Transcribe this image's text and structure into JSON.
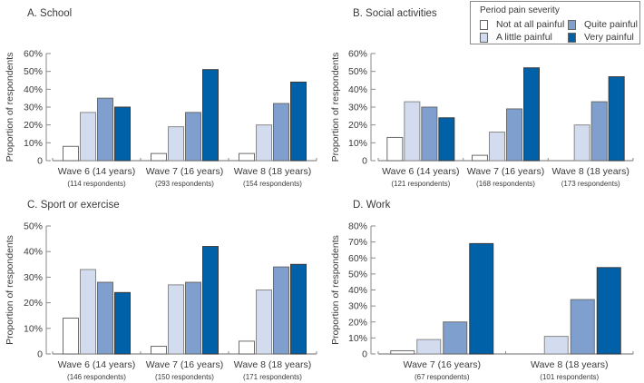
{
  "legend": {
    "title": "Period pain severity",
    "items": [
      {
        "label": "Not at all painful",
        "color": "#ffffff"
      },
      {
        "label": "A little painful",
        "color": "#d3dcee"
      },
      {
        "label": "Quite painful",
        "color": "#7f9fcf"
      },
      {
        "label": "Very painful",
        "color": "#0061a8"
      }
    ]
  },
  "chart_data": [
    {
      "type": "bar",
      "title": "A. School",
      "ylabel": "Proportion of respondents",
      "ylim": [
        0,
        60
      ],
      "yticks": [
        "0",
        "10%",
        "20%",
        "30%",
        "40%",
        "50%",
        "60%"
      ],
      "categories": [
        "Wave 6 (14 years)",
        "Wave 7 (16 years)",
        "Wave 8 (18 years)"
      ],
      "sublabels": [
        "(114 respondents)",
        "(293 respondents)",
        "(154 respondents)"
      ],
      "series": [
        {
          "name": "Not at all painful",
          "values": [
            8,
            4,
            4
          ]
        },
        {
          "name": "A little painful",
          "values": [
            27,
            19,
            20
          ]
        },
        {
          "name": "Quite painful",
          "values": [
            35,
            27,
            32
          ]
        },
        {
          "name": "Very painful",
          "values": [
            30,
            51,
            44
          ]
        }
      ]
    },
    {
      "type": "bar",
      "title": "B. Social activities",
      "ylabel": "Proportion of respondents",
      "ylim": [
        0,
        60
      ],
      "yticks": [
        "0",
        "10%",
        "20%",
        "30%",
        "40%",
        "50%",
        "60%"
      ],
      "categories": [
        "Wave 6 (14 years)",
        "Wave 7 (16 years)",
        "Wave 8 (18 years)"
      ],
      "sublabels": [
        "(121 respondents)",
        "(168 respondents)",
        "(173 respondents)"
      ],
      "series": [
        {
          "name": "Not at all painful",
          "values": [
            13,
            3,
            0
          ]
        },
        {
          "name": "A little painful",
          "values": [
            33,
            16,
            20
          ]
        },
        {
          "name": "Quite painful",
          "values": [
            30,
            29,
            33
          ]
        },
        {
          "name": "Very painful",
          "values": [
            24,
            52,
            47
          ]
        }
      ]
    },
    {
      "type": "bar",
      "title": "C. Sport or exercise",
      "ylabel": "Proportion of respondents",
      "ylim": [
        0,
        50
      ],
      "yticks": [
        "0",
        "10%",
        "20%",
        "30%",
        "40%",
        "50%"
      ],
      "categories": [
        "Wave 6 (14 years)",
        "Wave 7 (16 years)",
        "Wave 8 (18  years)"
      ],
      "sublabels": [
        "(146 respondents)",
        "(150 respondents)",
        "(171 respondents)"
      ],
      "series": [
        {
          "name": "Not at all painful",
          "values": [
            14,
            3,
            5
          ]
        },
        {
          "name": "A little painful",
          "values": [
            33,
            27,
            25
          ]
        },
        {
          "name": "Quite painful",
          "values": [
            28,
            28,
            34
          ]
        },
        {
          "name": "Very painful",
          "values": [
            24,
            42,
            35
          ]
        }
      ]
    },
    {
      "type": "bar",
      "title": "D. Work",
      "ylabel": "Proportion of respondents",
      "ylim": [
        0,
        80
      ],
      "yticks": [
        "0",
        "10%",
        "20%",
        "30%",
        "40%",
        "50%",
        "60%",
        "70%",
        "80%"
      ],
      "categories": [
        "Wave 7 (16 years)",
        "Wave 8 (18 years)"
      ],
      "sublabels": [
        "(67 respondents)",
        "(101 respondents)"
      ],
      "series": [
        {
          "name": "Not at all painful",
          "values": [
            2,
            0
          ]
        },
        {
          "name": "A little painful",
          "values": [
            9,
            11
          ]
        },
        {
          "name": "Quite painful",
          "values": [
            20,
            34
          ]
        },
        {
          "name": "Very painful",
          "values": [
            69,
            54
          ]
        }
      ]
    }
  ]
}
